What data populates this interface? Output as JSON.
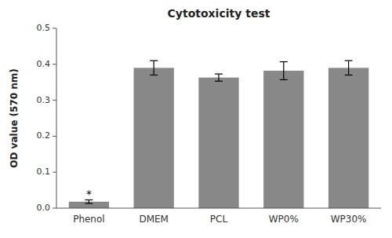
{
  "chart_data": {
    "type": "bar",
    "title": "Cytotoxicity test",
    "categories": [
      "Phenol",
      "DMEM",
      "PCL",
      "WP0%",
      "WP30%"
    ],
    "values": [
      0.018,
      0.39,
      0.363,
      0.382,
      0.39
    ],
    "errors": [
      0.005,
      0.02,
      0.01,
      0.025,
      0.02
    ],
    "color": "#888888",
    "ylabel": "OD value (570 nm)",
    "ylim": [
      0,
      0.5
    ],
    "yticks": [
      {
        "value": 0,
        "label": "0.0"
      },
      0.1,
      0.2,
      0.3,
      0.4,
      0.5
    ],
    "annotations": [
      {
        "text": "*",
        "x": "Phenol",
        "y": 0.027
      }
    ],
    "grid": false
  }
}
